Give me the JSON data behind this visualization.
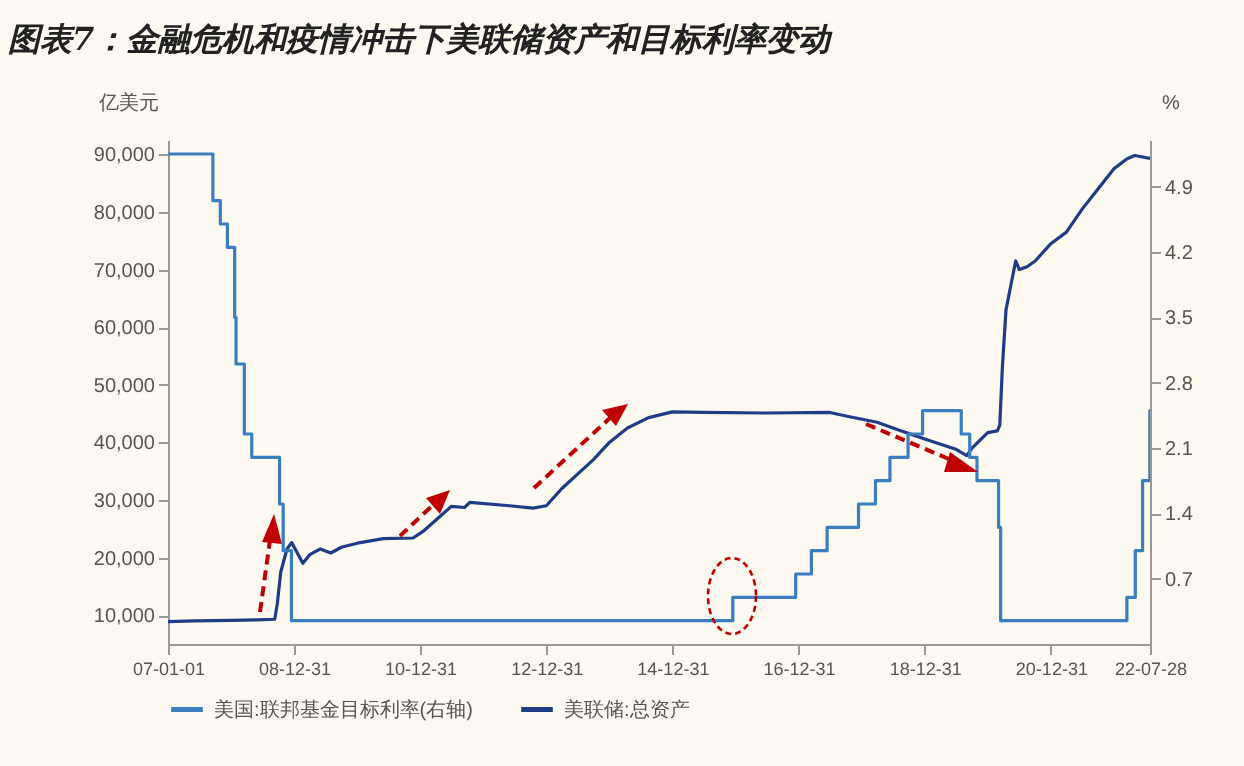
{
  "chart_data": {
    "type": "line",
    "title": "图表7：金融危机和疫情冲击下美联储资产和目标利率变动",
    "ylabel": "亿美元",
    "y2label": "%",
    "xlim": [
      "2007-01-01",
      "2022-07-28"
    ],
    "xticks": [
      {
        "value": "2007-01-01",
        "label": "07-01-01"
      },
      {
        "value": "2008-12-31",
        "label": "08-12-31"
      },
      {
        "value": "2010-12-31",
        "label": "10-12-31"
      },
      {
        "value": "2012-12-31",
        "label": "12-12-31"
      },
      {
        "value": "2014-12-31",
        "label": "14-12-31"
      },
      {
        "value": "2016-12-31",
        "label": "16-12-31"
      },
      {
        "value": "2018-12-31",
        "label": "18-12-31"
      },
      {
        "value": "2020-12-31",
        "label": "20-12-31"
      },
      {
        "value": "2022-07-28",
        "label": "22-07-28"
      }
    ],
    "ylim": [
      5000,
      92500
    ],
    "yticks": [
      {
        "value": 10000,
        "label": "10,000"
      },
      {
        "value": 20000,
        "label": "20,000"
      },
      {
        "value": 30000,
        "label": "30,000"
      },
      {
        "value": 40000,
        "label": "40,000"
      },
      {
        "value": 50000,
        "label": "50,000"
      },
      {
        "value": 60000,
        "label": "60,000"
      },
      {
        "value": 70000,
        "label": "70,000"
      },
      {
        "value": 80000,
        "label": "80,000"
      },
      {
        "value": 90000,
        "label": "90,000"
      }
    ],
    "y2lim": [
      0,
      5.4
    ],
    "y2ticks": [
      0.7,
      1.4,
      2.1,
      2.8,
      3.5,
      4.2,
      4.9
    ],
    "legend": "bottom",
    "grid": false,
    "series": [
      {
        "name": "美国:联邦基金目标利率(右轴)",
        "type": "step",
        "axis": "y2",
        "color": "#3a7dc0",
        "x": [
          "2007-01-01",
          "2007-09-18",
          "2007-10-31",
          "2007-12-11",
          "2008-01-22",
          "2008-01-30",
          "2008-03-18",
          "2008-04-30",
          "2008-10-08",
          "2008-10-29",
          "2008-12-16",
          "2015-12-16",
          "2016-12-14",
          "2017-03-15",
          "2017-06-14",
          "2017-12-13",
          "2018-03-21",
          "2018-06-13",
          "2018-09-26",
          "2018-12-19",
          "2019-07-31",
          "2019-09-18",
          "2019-10-30",
          "2020-03-03",
          "2020-03-15",
          "2022-03-16",
          "2022-05-04",
          "2022-06-15",
          "2022-07-27",
          "2022-07-28"
        ],
        "values": [
          5.25,
          4.75,
          4.5,
          4.25,
          3.5,
          3.0,
          2.25,
          2.0,
          1.5,
          1.0,
          0.25,
          0.5,
          0.75,
          1.0,
          1.25,
          1.5,
          1.75,
          2.0,
          2.25,
          2.5,
          2.25,
          2.0,
          1.75,
          1.25,
          0.25,
          0.5,
          1.0,
          1.75,
          2.5,
          2.5
        ]
      },
      {
        "name": "美联储:总资产",
        "type": "line",
        "color": "#1f3c88",
        "x": [
          "2007-01-01",
          "2007-06-01",
          "2008-01-01",
          "2008-06-01",
          "2008-09-10",
          "2008-09-25",
          "2008-10-15",
          "2008-11-20",
          "2008-12-17",
          "2009-01-15",
          "2009-02-20",
          "2009-04-01",
          "2009-06-01",
          "2009-08-01",
          "2009-10-01",
          "2010-01-01",
          "2010-06-01",
          "2010-11-20",
          "2011-01-15",
          "2011-06-30",
          "2011-09-15",
          "2011-10-15",
          "2012-06-01",
          "2012-10-15",
          "2012-12-31",
          "2013-03-31",
          "2013-06-30",
          "2013-09-30",
          "2013-12-31",
          "2014-04-15",
          "2014-08-15",
          "2014-12-31",
          "2015-06-30",
          "2016-06-30",
          "2017-06-30",
          "2017-10-15",
          "2018-03-31",
          "2018-06-30",
          "2018-12-31",
          "2019-06-30",
          "2019-09-01",
          "2019-10-01",
          "2019-12-31",
          "2020-02-25",
          "2020-03-10",
          "2020-03-25",
          "2020-04-15",
          "2020-06-10",
          "2020-07-01",
          "2020-08-15",
          "2020-10-01",
          "2020-12-31",
          "2021-03-31",
          "2021-06-30",
          "2021-09-30",
          "2021-12-31",
          "2022-03-15",
          "2022-05-01",
          "2022-07-28"
        ],
        "values": [
          8900,
          9000,
          9100,
          9200,
          9300,
          12000,
          17500,
          21500,
          22600,
          21000,
          19000,
          20500,
          21500,
          20800,
          21800,
          22500,
          23300,
          23400,
          24500,
          28900,
          28700,
          29600,
          29000,
          28600,
          29000,
          32000,
          34500,
          37000,
          40000,
          42500,
          44300,
          45300,
          45200,
          45100,
          45200,
          44500,
          43500,
          42500,
          40600,
          38800,
          37700,
          39000,
          41700,
          42000,
          43000,
          53000,
          63000,
          71500,
          70000,
          70500,
          71500,
          74500,
          76500,
          80500,
          84000,
          87500,
          89200,
          89800,
          89300
        ]
      }
    ]
  }
}
